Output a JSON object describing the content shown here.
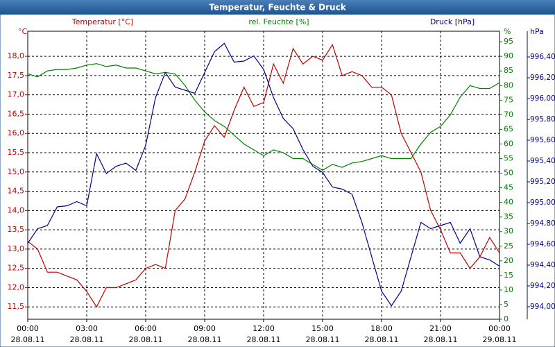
{
  "chart_data": {
    "type": "line",
    "title": "Temperatur, Feuchte & Druck",
    "y_unit": "°C",
    "y_label": "Temperatur [°C]",
    "y2_unit": "%",
    "y2_label": "rel. Feuchte [%]",
    "y3_unit": "hPa",
    "y3_label": "Druck [hPa]",
    "grid": true,
    "x": [
      0,
      0.5,
      1,
      1.5,
      2,
      2.5,
      3,
      3.5,
      4,
      4.5,
      5,
      5.5,
      6,
      6.5,
      7,
      7.5,
      8,
      8.5,
      9,
      9.5,
      10,
      10.5,
      11,
      11.5,
      12,
      12.5,
      13,
      13.5,
      14,
      14.5,
      15,
      15.5,
      16,
      16.5,
      17,
      17.5,
      18,
      18.5,
      19,
      19.5,
      20,
      20.5,
      21,
      21.5,
      22,
      22.5,
      23,
      23.5,
      24
    ],
    "xlim": [
      0,
      24
    ],
    "xticks": [
      {
        "value": 0,
        "label": "00:00"
      },
      {
        "value": 3,
        "label": "03:00"
      },
      {
        "value": 6,
        "label": "06:00"
      },
      {
        "value": 9,
        "label": "09:00"
      },
      {
        "value": 12,
        "label": "12:00"
      },
      {
        "value": 15,
        "label": "15:00"
      },
      {
        "value": 18,
        "label": "18:00"
      },
      {
        "value": 21,
        "label": "21:00"
      },
      {
        "value": 24,
        "label": "00:00"
      }
    ],
    "xtick_dates": [
      "28.08.11",
      "28.08.11",
      "28.08.11",
      "28.08.11",
      "28.08.11",
      "28.08.11",
      "28.08.11",
      "28.08.11",
      "29.08.11"
    ],
    "ylim": [
      11.18,
      18.65
    ],
    "yticks": [
      {
        "value": 11.5,
        "label": "11,5"
      },
      {
        "value": 12,
        "label": "12,0"
      },
      {
        "value": 12.5,
        "label": "12,5"
      },
      {
        "value": 13,
        "label": "13,0"
      },
      {
        "value": 13.5,
        "label": "13,5"
      },
      {
        "value": 14,
        "label": "14,0"
      },
      {
        "value": 14.5,
        "label": "14,5"
      },
      {
        "value": 15,
        "label": "15,0"
      },
      {
        "value": 15.5,
        "label": "15,5"
      },
      {
        "value": 16,
        "label": "16,0"
      },
      {
        "value": 16.5,
        "label": "16,5"
      },
      {
        "value": 17,
        "label": "17,0"
      },
      {
        "value": 17.5,
        "label": "17,5"
      },
      {
        "value": 18,
        "label": "18,0"
      }
    ],
    "y2lim": [
      0,
      98.6
    ],
    "y2ticks": [
      0,
      5,
      10,
      15,
      20,
      25,
      30,
      35,
      40,
      45,
      50,
      55,
      60,
      65,
      70,
      75,
      80,
      85,
      90,
      95
    ],
    "y3lim": [
      993.88,
      996.647
    ],
    "y3ticks": [
      {
        "value": 994,
        "label": "994,00"
      },
      {
        "value": 994.2,
        "label": "994,20"
      },
      {
        "value": 994.4,
        "label": "994,40"
      },
      {
        "value": 994.6,
        "label": "994,60"
      },
      {
        "value": 994.8,
        "label": "994,80"
      },
      {
        "value": 995,
        "label": "995,00"
      },
      {
        "value": 995.2,
        "label": "995,20"
      },
      {
        "value": 995.4,
        "label": "995,40"
      },
      {
        "value": 995.6,
        "label": "995,60"
      },
      {
        "value": 995.8,
        "label": "995,80"
      },
      {
        "value": 996,
        "label": "996,00"
      },
      {
        "value": 996.2,
        "label": "996,20"
      },
      {
        "value": 996.4,
        "label": "996,40"
      }
    ],
    "series": [
      {
        "name": "Temperatur",
        "color": "#c00000",
        "axis": "y",
        "values": [
          13.2,
          13.0,
          12.4,
          12.4,
          12.3,
          12.2,
          11.9,
          11.5,
          12.0,
          12.0,
          12.1,
          12.2,
          12.5,
          12.6,
          12.5,
          14.0,
          14.3,
          15.0,
          15.8,
          16.2,
          15.9,
          16.6,
          17.2,
          16.7,
          16.8,
          17.8,
          17.3,
          18.2,
          17.8,
          18.0,
          17.9,
          18.3,
          17.5,
          17.6,
          17.5,
          17.2,
          17.2,
          17.0,
          16.0,
          15.5,
          15.0,
          14.0,
          13.5,
          12.9,
          12.9,
          12.5,
          12.8,
          13.3,
          12.9
        ]
      },
      {
        "name": "rel. Feuchte",
        "color": "#008000",
        "axis": "y2",
        "values": [
          84,
          83,
          85,
          85.5,
          85.5,
          86,
          87,
          87.5,
          86.5,
          87,
          86,
          86,
          85,
          84,
          84.5,
          84,
          80,
          75,
          71,
          68,
          66,
          63,
          60,
          58,
          56,
          58,
          57,
          55,
          55,
          53,
          51,
          53,
          52,
          53.5,
          54,
          55,
          56,
          55,
          55,
          55,
          60,
          64,
          66,
          70,
          76,
          80,
          79,
          79,
          81
        ]
      },
      {
        "name": "Druck",
        "color": "#00008b",
        "axis": "y3",
        "values": [
          994.61,
          994.75,
          994.78,
          994.96,
          994.97,
          995.01,
          994.97,
          995.47,
          995.28,
          995.35,
          995.38,
          995.31,
          995.55,
          996.01,
          996.25,
          996.11,
          996.08,
          996.05,
          996.25,
          996.45,
          996.53,
          996.35,
          996.36,
          996.41,
          996.28,
          996.01,
          995.81,
          995.71,
          995.51,
          995.35,
          995.29,
          995.15,
          995.13,
          995.08,
          994.81,
          994.48,
          994.15,
          994.01,
          994.15,
          994.48,
          994.81,
          994.75,
          994.78,
          994.81,
          994.61,
          994.75,
          994.48,
          994.45,
          994.39
        ]
      }
    ]
  }
}
